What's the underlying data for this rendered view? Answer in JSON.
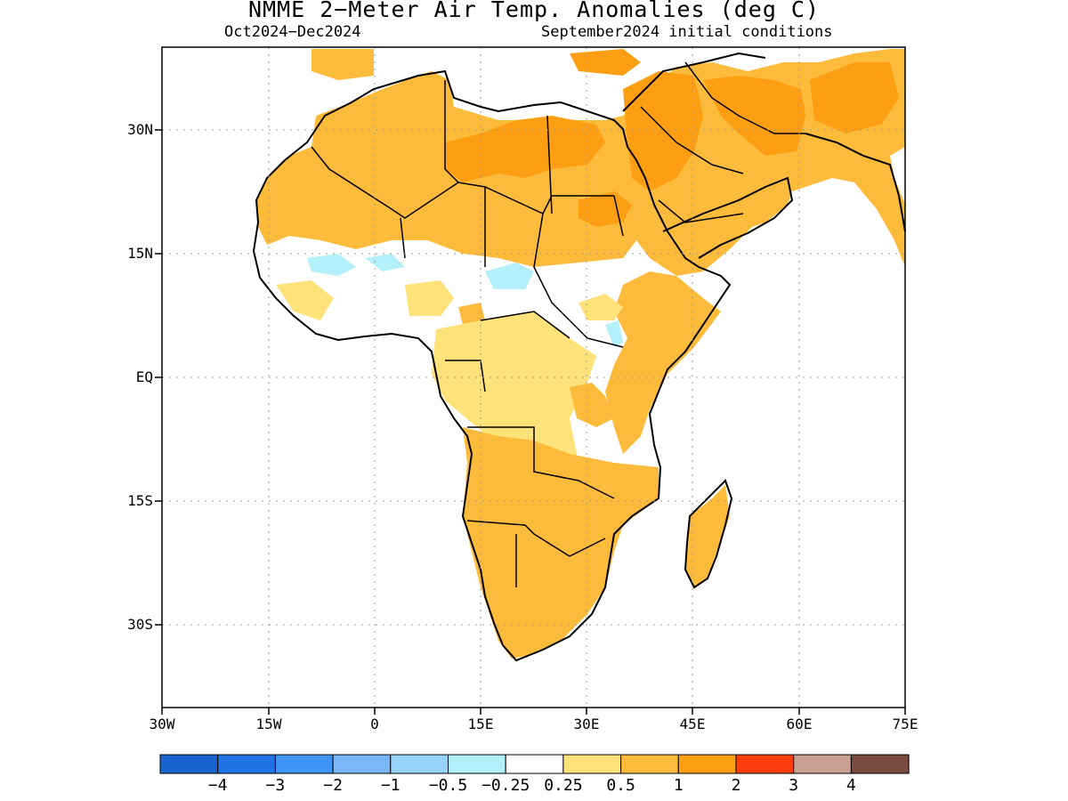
{
  "title": "NMME 2−Meter Air Temp. Anomalies (deg C)",
  "period": "Oct2024−Dec2024",
  "init": "September2024 initial conditions",
  "lat_labels": [
    "30N",
    "15N",
    "EQ",
    "15S",
    "30S"
  ],
  "lon_labels": [
    "30W",
    "15W",
    "0",
    "15E",
    "30E",
    "45E",
    "60E",
    "75E"
  ],
  "colorbar": {
    "colors": [
      "#1963cf",
      "#2273e6",
      "#3d94f3",
      "#79b7f8",
      "#97d2fa",
      "#b4f0fa",
      "#ffffff",
      "#ffe27a",
      "#fdbb3c",
      "#fe9e12",
      "#fa3c0f",
      "#c8a092",
      "#7a4b3f"
    ],
    "labels": [
      "−4",
      "−3",
      "−2",
      "−1",
      "−0.5",
      "−0.25",
      "0.25",
      "0.5",
      "1",
      "2",
      "3",
      "4"
    ]
  }
}
